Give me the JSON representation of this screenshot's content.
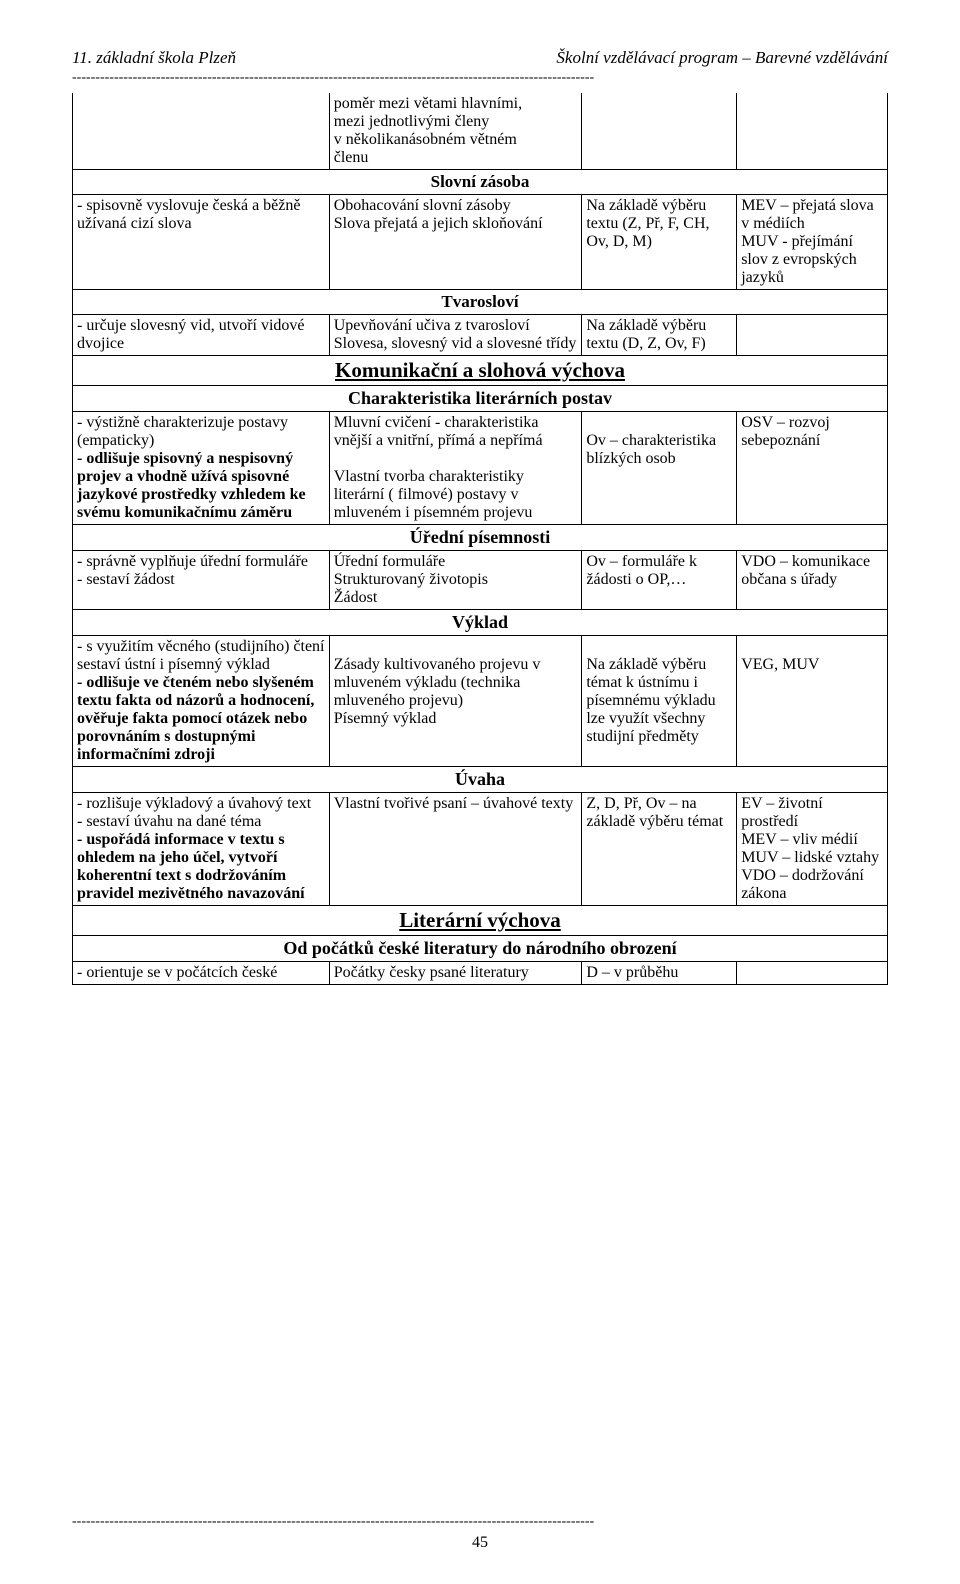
{
  "header": {
    "left": "11. základní škola Plzeň",
    "right": "Školní vzdělávací program – Barevné vzdělávání",
    "dash": "----------------------------------------------------------------------------------------------------------------"
  },
  "row_intro_c2": "poměr mezi větami hlavními,\nmezi jednotlivými členy\nv několikanásobném větném\nčlenu",
  "band_slovni": "Slovní zásoba",
  "row_sz": {
    "c1": "- spisovně vyslovuje česká a běžně užívaná cizí slova",
    "c2": "Obohacování slovní zásoby\nSlova přejatá a jejich skloňování",
    "c3": "Na základě výběru textu (Z, Př, F, CH, Ov, D, M)",
    "c4": "MEV – přejatá slova v médiích\nMUV - přejímání slov z evropských jazyků"
  },
  "band_tvaroslovi": "Tvarosloví",
  "row_tv": {
    "c1": "- určuje slovesný vid, utvoří vidové dvojice",
    "c2": "Upevňování učiva z tvarosloví\nSlovesa, slovesný vid a slovesné třídy",
    "c3": "Na základě výběru textu (D, Z, Ov, F)",
    "c4": ""
  },
  "band_komunik": "Komunikační a slohová výchova",
  "band_charakt": "Charakteristika literárních postav",
  "row_ch": {
    "c1a": "- výstižně charakterizuje postavy (empaticky)",
    "c1b": "- odlišuje spisovný a nespisovný projev a vhodně užívá spisovné jazykové prostředky vzhledem ke svému komunikačnímu záměru",
    "c2": "Mluvní cvičení - charakteristika vnější a vnitřní, přímá a nepřímá\n\nVlastní tvorba charakteristiky literární ( filmové) postavy v mluveném i písemném projevu",
    "c3": "\nOv – charakteristika blízkých osob",
    "c4": "OSV – rozvoj sebepoznání"
  },
  "band_uredni": "Úřední písemnosti",
  "row_ur": {
    "c1": "- správně vyplňuje úřední formuláře\n- sestaví žádost",
    "c2": "Úřední formuláře\nStrukturovaný životopis\nŽádost",
    "c3": "Ov – formuláře k žádosti o OP,…",
    "c4": "VDO – komunikace občana s úřady"
  },
  "band_vyklad": "Výklad",
  "row_vy": {
    "c1a": "- s využitím věcného (studijního) čtení sestaví ústní i písemný výklad",
    "c1b": "- odlišuje ve čteném nebo slyšeném textu fakta od názorů a hodnocení, ověřuje fakta pomocí otázek nebo porovnáním s dostupnými informačními zdroji",
    "c2": "\nZásady kultivovaného projevu v mluveném výkladu (technika mluveného projevu)\nPísemný výklad",
    "c3": "\nNa základě výběru témat k ústnímu i písemnému výkladu lze využít všechny studijní předměty",
    "c4": "\nVEG, MUV"
  },
  "band_uvaha": "Úvaha",
  "row_uv": {
    "c1a": "- rozlišuje výkladový a úvahový text\n- sestaví úvahu na dané téma",
    "c1b": "- uspořádá informace v textu s ohledem na jeho účel, vytvoří koherentní text s dodržováním pravidel mezivětného navazování",
    "c2": "Vlastní tvořivé psaní – úvahové texty",
    "c3": "Z, D, Př, Ov – na základě výběru témat",
    "c4": "EV – životní prostředí\nMEV – vliv médií\nMUV – lidské vztahy\nVDO – dodržování zákona"
  },
  "band_literarni": "Literární výchova",
  "band_odpocatku": "Od počátků české literatury do národního obrození",
  "row_lit": {
    "c1": "- orientuje se v počátcích české",
    "c2": "Počátky česky psané literatury",
    "c3": "D – v průběhu",
    "c4": ""
  },
  "footer": {
    "dash": "----------------------------------------------------------------------------------------------------------------",
    "page": "45"
  }
}
